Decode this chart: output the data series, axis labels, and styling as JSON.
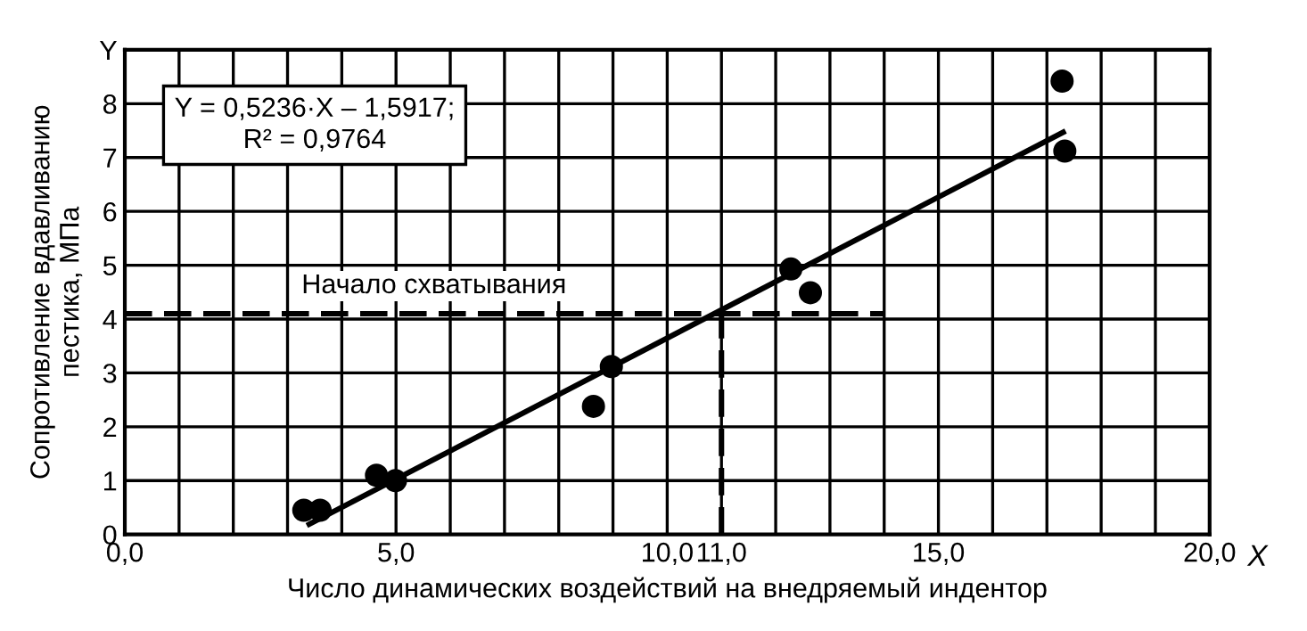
{
  "chart_data": {
    "type": "scatter",
    "xlabel": "Число динамических воздействий на внедряемый индентор",
    "ylabel": "Сопротивление вдавливанию\nпестика, МПа",
    "xlim": [
      0,
      20
    ],
    "ylim": [
      0,
      9
    ],
    "xticks": [
      {
        "value": 0,
        "label": "0,0"
      },
      {
        "value": 1,
        "label": null
      },
      {
        "value": 2,
        "label": null
      },
      {
        "value": 3,
        "label": null
      },
      {
        "value": 4,
        "label": null
      },
      {
        "value": 5,
        "label": "5,0"
      },
      {
        "value": 6,
        "label": null
      },
      {
        "value": 7,
        "label": null
      },
      {
        "value": 8,
        "label": null
      },
      {
        "value": 9,
        "label": null
      },
      {
        "value": 10,
        "label": "10,0"
      },
      {
        "value": 11,
        "label": "11,0"
      },
      {
        "value": 12,
        "label": null
      },
      {
        "value": 13,
        "label": null
      },
      {
        "value": 14,
        "label": null
      },
      {
        "value": 15,
        "label": "15,0"
      },
      {
        "value": 16,
        "label": null
      },
      {
        "value": 17,
        "label": null
      },
      {
        "value": 18,
        "label": null
      },
      {
        "value": 19,
        "label": null
      },
      {
        "value": 20,
        "label": "20,0"
      }
    ],
    "yticks": [
      0,
      1,
      2,
      3,
      4,
      5,
      6,
      7,
      8,
      {
        "value": 9,
        "label": "Y"
      }
    ],
    "grid": true,
    "series": [
      {
        "color": "#000000",
        "marker": "circle",
        "x": [
          3.3,
          3.6,
          4.64,
          4.99,
          8.64,
          8.97,
          12.28,
          12.64,
          17.28,
          17.33
        ],
        "values": [
          0.45,
          0.45,
          1.1,
          1.0,
          2.38,
          3.12,
          4.93,
          4.49,
          8.42,
          7.12
        ]
      },
      {
        "type": "line",
        "color": "#000000",
        "line_style": "solid",
        "x": [
          3.4,
          17.3
        ],
        "values": [
          0.19,
          7.47
        ]
      },
      {
        "type": "line",
        "color": "#000000",
        "line_style": "dashed",
        "x": [
          0,
          14
        ],
        "values": [
          4.1,
          4.1
        ]
      },
      {
        "type": "line",
        "color": "#000000",
        "line_style": "dashed",
        "x": [
          11,
          11
        ],
        "values": [
          0,
          4.1
        ]
      }
    ],
    "annotations": [
      {
        "text": "Начало схватывания",
        "x": 5.7,
        "y": 4.1
      },
      "Y = 0,5236·X – 1,5917;\nR² = 0,9764",
      "X"
    ]
  }
}
